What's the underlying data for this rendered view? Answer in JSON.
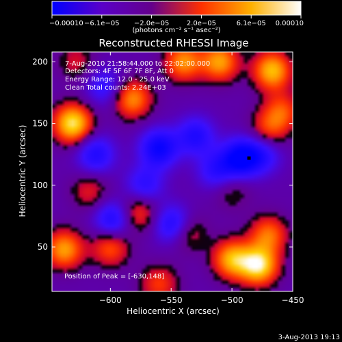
{
  "chart_data": {
    "type": "heatmap",
    "title": "Reconstructed RHESSI Image",
    "xlabel": "Heliocentric X (arcsec)",
    "ylabel": "Heliocentric Y (arcsec)",
    "xlim": [
      -648,
      -450
    ],
    "ylim": [
      14,
      208
    ],
    "x_ticks": [
      -600,
      -550,
      -500,
      -450
    ],
    "x_tick_labels": [
      "−600",
      "−550",
      "−500",
      "−450"
    ],
    "y_ticks": [
      50,
      100,
      150,
      200
    ],
    "y_tick_labels": [
      "50",
      "100",
      "150",
      "200"
    ],
    "colorbar": {
      "range": [
        -0.0001,
        0.0001
      ],
      "tick_labels": [
        "−0.00010",
        "−6.1e−05",
        "−2.0e−05",
        "2.0e−05",
        "6.1e−05",
        "0.00010"
      ],
      "unit_label": "(photons cm⁻² s⁻¹ asec⁻²)",
      "colors": [
        "#0000ff",
        "#5a00c8",
        "#64008c",
        "#ff3000",
        "#ffb000",
        "#ffffff"
      ]
    },
    "annotations": [
      "7-Aug-2010 21:58:44.000 to 22:02:00.000",
      "Detectors: 4F 5F 6F 7F 8F, Att 0",
      "Energy Range: 12.0 - 25.0 keV",
      "Clean    Total counts: 2.24E+03"
    ],
    "peak_label": "Position of Peak = [-630,148]",
    "timestamp": "3-Aug-2013 19:13",
    "sources": [
      {
        "x": -631,
        "y": 150,
        "value": 1.0
      },
      {
        "x": -582,
        "y": 170,
        "value": 0.7
      },
      {
        "x": -540,
        "y": 200,
        "value": 0.7
      },
      {
        "x": -510,
        "y": 200,
        "value": 0.75
      },
      {
        "x": -467,
        "y": 193,
        "value": 0.85
      },
      {
        "x": -459,
        "y": 160,
        "value": 0.5
      },
      {
        "x": -470,
        "y": 145,
        "value": 0.45
      },
      {
        "x": -478,
        "y": 35,
        "value": 1.0
      },
      {
        "x": -500,
        "y": 40,
        "value": 0.8
      },
      {
        "x": -470,
        "y": 60,
        "value": 0.6
      },
      {
        "x": -638,
        "y": 48,
        "value": 0.75
      },
      {
        "x": -600,
        "y": 50,
        "value": 0.55
      },
      {
        "x": -577,
        "y": 78,
        "value": 0.5
      },
      {
        "x": -537,
        "y": 62,
        "value": 0.45
      },
      {
        "x": -617,
        "y": 95,
        "value": 0.35
      },
      {
        "x": -500,
        "y": 95,
        "value": 0.25
      },
      {
        "x": -628,
        "y": 200,
        "value": 0.3
      },
      {
        "x": -560,
        "y": 20,
        "value": 0.45
      },
      {
        "x": -612,
        "y": 125,
        "value": -0.6
      },
      {
        "x": -560,
        "y": 130,
        "value": -0.8
      },
      {
        "x": -530,
        "y": 140,
        "value": -0.6
      },
      {
        "x": -493,
        "y": 122,
        "value": -0.9
      },
      {
        "x": -598,
        "y": 72,
        "value": -0.65
      },
      {
        "x": -548,
        "y": 68,
        "value": -0.7
      },
      {
        "x": -513,
        "y": 112,
        "value": -0.5
      },
      {
        "x": -572,
        "y": 100,
        "value": -0.5
      },
      {
        "x": -605,
        "y": 180,
        "value": -0.45
      },
      {
        "x": -475,
        "y": 125,
        "value": -0.5
      }
    ]
  }
}
